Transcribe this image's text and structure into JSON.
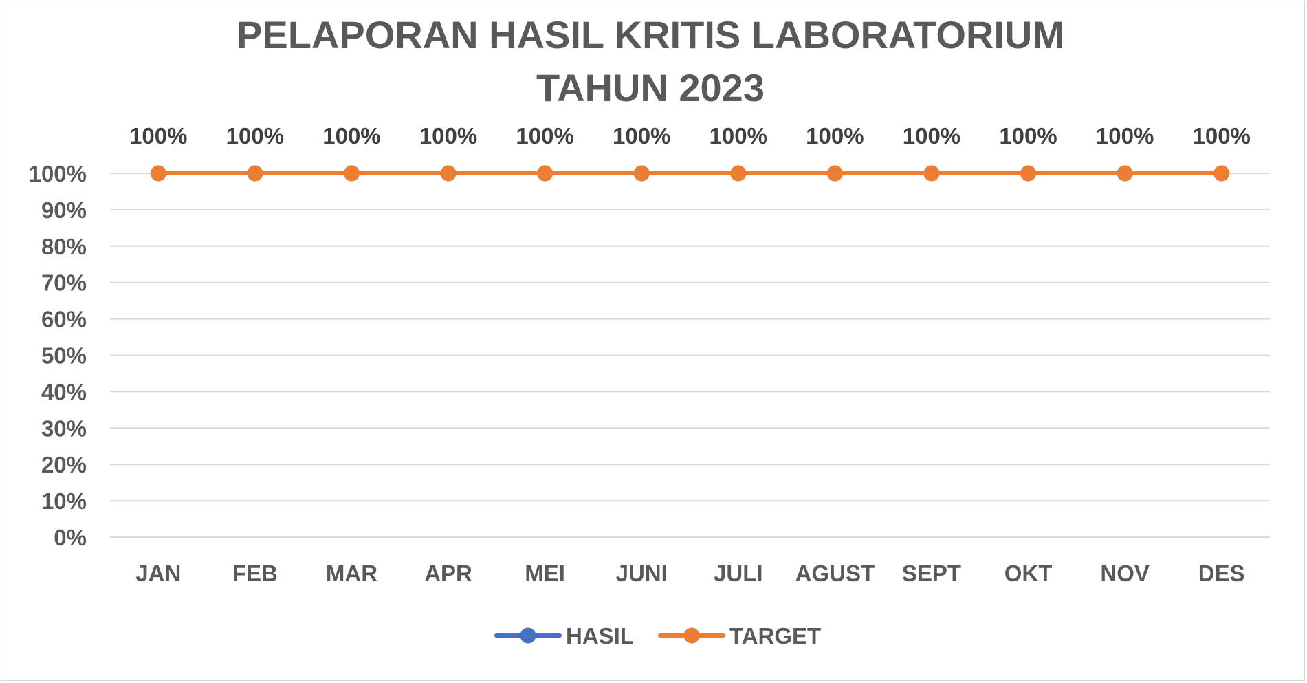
{
  "chart_data": {
    "type": "line",
    "title": "PELAPORAN HASIL KRITIS LABORATORIUM",
    "subtitle": "TAHUN 2023",
    "categories": [
      "JAN",
      "FEB",
      "MAR",
      "APR",
      "MEI",
      "JUNI",
      "JULI",
      "AGUST",
      "SEPT",
      "OKT",
      "NOV",
      "DES"
    ],
    "series": [
      {
        "name": "HASIL",
        "color": "#4472c4",
        "values": [
          1,
          1,
          1,
          1,
          1,
          1,
          1,
          1,
          1,
          1,
          1,
          1
        ]
      },
      {
        "name": "TARGET",
        "color": "#ed7d31",
        "values": [
          1,
          1,
          1,
          1,
          1,
          1,
          1,
          1,
          1,
          1,
          1,
          1
        ]
      }
    ],
    "data_labels": [
      "100%",
      "100%",
      "100%",
      "100%",
      "100%",
      "100%",
      "100%",
      "100%",
      "100%",
      "100%",
      "100%",
      "100%"
    ],
    "y_ticks": [
      "0%",
      "10%",
      "20%",
      "30%",
      "40%",
      "50%",
      "60%",
      "70%",
      "80%",
      "90%",
      "100%"
    ],
    "ylim": [
      0,
      1
    ],
    "y_format": "percent",
    "grid": true,
    "legend_position": "bottom"
  }
}
